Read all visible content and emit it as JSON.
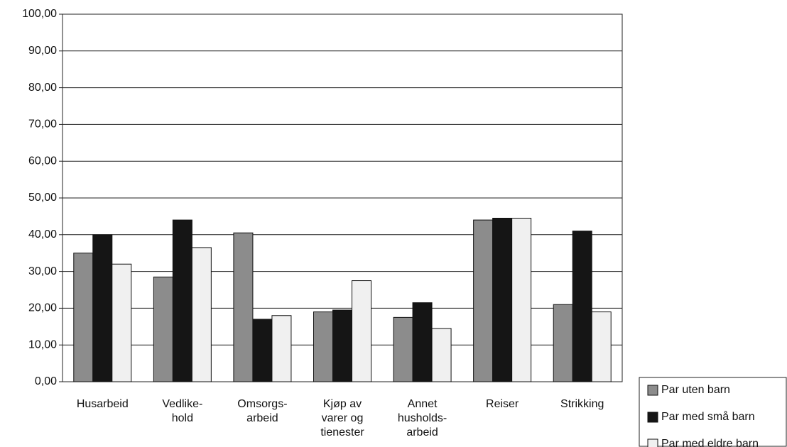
{
  "chart_data": {
    "type": "bar",
    "categories": [
      [
        "Husarbeid"
      ],
      [
        "Vedlike-",
        "hold"
      ],
      [
        "Omsorgs-",
        "arbeid"
      ],
      [
        "Kjøp av",
        "varer og",
        "tienester"
      ],
      [
        "Annet",
        "husholds-",
        "arbeid"
      ],
      [
        "Reiser"
      ],
      [
        "Strikking"
      ]
    ],
    "series": [
      {
        "name": "Par uten barn",
        "color": "#8c8c8c",
        "values": [
          35,
          28.5,
          40.5,
          19,
          17.5,
          44,
          21
        ]
      },
      {
        "name": "Par med små barn",
        "color": "#151515",
        "values": [
          40,
          44,
          17,
          19.5,
          21.5,
          44.5,
          41
        ]
      },
      {
        "name": "Par med eldre barn",
        "color": "#f0f0f0",
        "values": [
          32,
          36.5,
          18,
          27.5,
          14.5,
          44.5,
          19
        ]
      }
    ],
    "ylim": [
      0,
      100
    ],
    "yticks": [
      {
        "value": 0,
        "label": "0,00"
      },
      {
        "value": 10,
        "label": "10,00"
      },
      {
        "value": 20,
        "label": "20,00"
      },
      {
        "value": 30,
        "label": "30,00"
      },
      {
        "value": 40,
        "label": "40,00"
      },
      {
        "value": 50,
        "label": "50,00"
      },
      {
        "value": 60,
        "label": "60,00"
      },
      {
        "value": 70,
        "label": "70,00"
      },
      {
        "value": 80,
        "label": "80,00"
      },
      {
        "value": 90,
        "label": "90,00"
      },
      {
        "value": 100,
        "label": "100,00"
      }
    ],
    "grid": true,
    "legend": "bottom-right"
  }
}
